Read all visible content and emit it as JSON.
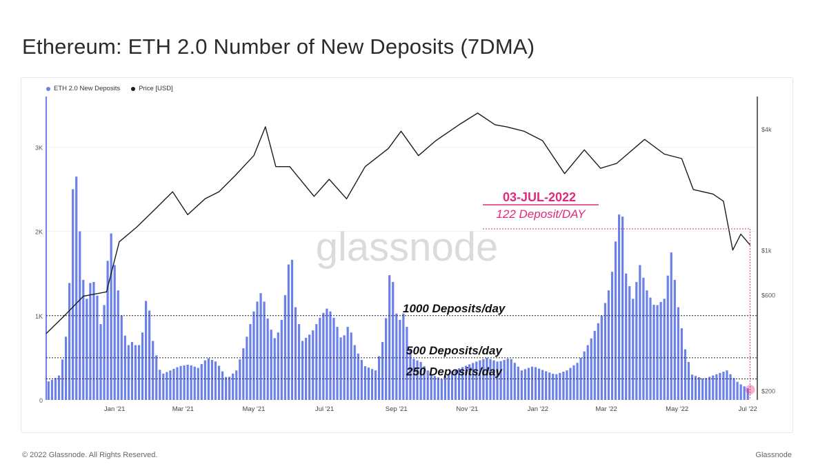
{
  "title": "Ethereum: ETH 2.0 Number of New Deposits (7DMA)",
  "footer": {
    "copyright": "© 2022 Glassnode. All Rights Reserved.",
    "brand": "Glassnode"
  },
  "watermark": "glassnode",
  "colors": {
    "deposits": "#6b80e8",
    "price": "#1a1a1a",
    "accent": "#e0287d",
    "ref": "#222222"
  },
  "chart_data": {
    "type": "bar",
    "legend": [
      {
        "name": "ETH 2.0 New Deposits",
        "color": "#6b80e8"
      },
      {
        "name": "Price [USD]",
        "color": "#1a1a1a"
      }
    ],
    "legend_position": "top-left",
    "x_ticks": [
      "Jan '21",
      "Mar '21",
      "May '21",
      "Jul '21",
      "Sep '21",
      "Nov '21",
      "Jan '22",
      "Mar '22",
      "May '22",
      "Jul '22"
    ],
    "x_tick_dates": [
      "2021-01-01",
      "2021-03-01",
      "2021-05-01",
      "2021-07-01",
      "2021-09-01",
      "2021-11-01",
      "2022-01-01",
      "2022-03-01",
      "2022-05-01",
      "2022-07-01"
    ],
    "x_range": [
      "2020-11-03",
      "2022-07-08"
    ],
    "y_left": {
      "ticks": [
        0,
        1000,
        2000,
        3000
      ],
      "tick_labels": [
        "0",
        "1K",
        "2K",
        "3K"
      ],
      "range": [
        0,
        3600
      ]
    },
    "y_right": {
      "scale": "log",
      "ticks": [
        200,
        600,
        1000,
        4000
      ],
      "tick_labels": [
        "$200",
        "$600",
        "$1k",
        "$4k"
      ],
      "range": [
        180,
        5800
      ]
    },
    "series": [
      {
        "name": "ETH 2.0 New Deposits",
        "axis": "left",
        "type": "bar",
        "color": "#6b80e8",
        "points": [
          [
            "2020-11-05",
            220
          ],
          [
            "2020-11-10",
            250
          ],
          [
            "2020-11-15",
            300
          ],
          [
            "2020-11-20",
            750
          ],
          [
            "2020-11-24",
            1600
          ],
          [
            "2020-11-27",
            2950
          ],
          [
            "2020-11-30",
            2500
          ],
          [
            "2020-12-04",
            1500
          ],
          [
            "2020-12-08",
            1200
          ],
          [
            "2020-12-12",
            1450
          ],
          [
            "2020-12-16",
            1350
          ],
          [
            "2020-12-20",
            900
          ],
          [
            "2020-12-24",
            1200
          ],
          [
            "2020-12-28",
            2100
          ],
          [
            "2021-01-01",
            1600
          ],
          [
            "2021-01-05",
            1200
          ],
          [
            "2021-01-09",
            800
          ],
          [
            "2021-01-13",
            650
          ],
          [
            "2021-01-17",
            700
          ],
          [
            "2021-01-21",
            600
          ],
          [
            "2021-01-25",
            800
          ],
          [
            "2021-01-29",
            1300
          ],
          [
            "2021-02-03",
            700
          ],
          [
            "2021-02-10",
            300
          ],
          [
            "2021-02-18",
            350
          ],
          [
            "2021-02-26",
            400
          ],
          [
            "2021-03-06",
            420
          ],
          [
            "2021-03-14",
            380
          ],
          [
            "2021-03-22",
            500
          ],
          [
            "2021-03-30",
            450
          ],
          [
            "2021-04-08",
            250
          ],
          [
            "2021-04-16",
            350
          ],
          [
            "2021-04-24",
            700
          ],
          [
            "2021-05-02",
            1100
          ],
          [
            "2021-05-08",
            1300
          ],
          [
            "2021-05-14",
            900
          ],
          [
            "2021-05-20",
            700
          ],
          [
            "2021-05-26",
            1000
          ],
          [
            "2021-06-02",
            1850
          ],
          [
            "2021-06-06",
            1100
          ],
          [
            "2021-06-12",
            700
          ],
          [
            "2021-06-20",
            800
          ],
          [
            "2021-06-28",
            1000
          ],
          [
            "2021-07-04",
            1100
          ],
          [
            "2021-07-10",
            950
          ],
          [
            "2021-07-16",
            700
          ],
          [
            "2021-07-22",
            900
          ],
          [
            "2021-07-28",
            600
          ],
          [
            "2021-08-05",
            400
          ],
          [
            "2021-08-14",
            350
          ],
          [
            "2021-08-22",
            800
          ],
          [
            "2021-08-27",
            1650
          ],
          [
            "2021-09-02",
            900
          ],
          [
            "2021-09-08",
            1050
          ],
          [
            "2021-09-14",
            500
          ],
          [
            "2021-09-22",
            450
          ],
          [
            "2021-10-01",
            300
          ],
          [
            "2021-10-10",
            250
          ],
          [
            "2021-10-20",
            350
          ],
          [
            "2021-10-30",
            400
          ],
          [
            "2021-11-08",
            450
          ],
          [
            "2021-11-18",
            500
          ],
          [
            "2021-11-28",
            450
          ],
          [
            "2021-12-08",
            500
          ],
          [
            "2021-12-18",
            350
          ],
          [
            "2021-12-28",
            400
          ],
          [
            "2022-01-06",
            350
          ],
          [
            "2022-01-16",
            300
          ],
          [
            "2022-01-26",
            350
          ],
          [
            "2022-02-05",
            450
          ],
          [
            "2022-02-15",
            700
          ],
          [
            "2022-02-25",
            1000
          ],
          [
            "2022-03-05",
            1400
          ],
          [
            "2022-03-10",
            2000
          ],
          [
            "2022-03-14",
            2400
          ],
          [
            "2022-03-18",
            1500
          ],
          [
            "2022-03-24",
            1200
          ],
          [
            "2022-03-30",
            1600
          ],
          [
            "2022-04-05",
            1300
          ],
          [
            "2022-04-12",
            1100
          ],
          [
            "2022-04-20",
            1200
          ],
          [
            "2022-04-26",
            1750
          ],
          [
            "2022-05-02",
            1100
          ],
          [
            "2022-05-08",
            600
          ],
          [
            "2022-05-14",
            300
          ],
          [
            "2022-05-24",
            250
          ],
          [
            "2022-06-03",
            300
          ],
          [
            "2022-06-13",
            350
          ],
          [
            "2022-06-23",
            200
          ],
          [
            "2022-07-03",
            122
          ]
        ]
      },
      {
        "name": "Price [USD]",
        "axis": "right",
        "type": "line",
        "color": "#1a1a1a",
        "points": [
          [
            "2020-11-03",
            385
          ],
          [
            "2020-11-20",
            480
          ],
          [
            "2020-12-05",
            590
          ],
          [
            "2020-12-25",
            620
          ],
          [
            "2021-01-05",
            1100
          ],
          [
            "2021-01-20",
            1300
          ],
          [
            "2021-02-05",
            1600
          ],
          [
            "2021-02-20",
            1950
          ],
          [
            "2021-03-05",
            1500
          ],
          [
            "2021-03-20",
            1800
          ],
          [
            "2021-04-01",
            1950
          ],
          [
            "2021-04-15",
            2350
          ],
          [
            "2021-05-01",
            2950
          ],
          [
            "2021-05-11",
            4100
          ],
          [
            "2021-05-20",
            2600
          ],
          [
            "2021-06-01",
            2600
          ],
          [
            "2021-06-22",
            1850
          ],
          [
            "2021-07-05",
            2250
          ],
          [
            "2021-07-20",
            1800
          ],
          [
            "2021-08-05",
            2600
          ],
          [
            "2021-08-25",
            3200
          ],
          [
            "2021-09-05",
            3900
          ],
          [
            "2021-09-20",
            2950
          ],
          [
            "2021-10-05",
            3500
          ],
          [
            "2021-10-25",
            4200
          ],
          [
            "2021-11-10",
            4800
          ],
          [
            "2021-11-25",
            4200
          ],
          [
            "2021-12-05",
            4100
          ],
          [
            "2021-12-20",
            3900
          ],
          [
            "2022-01-05",
            3500
          ],
          [
            "2022-01-24",
            2400
          ],
          [
            "2022-02-10",
            3150
          ],
          [
            "2022-02-24",
            2550
          ],
          [
            "2022-03-10",
            2700
          ],
          [
            "2022-04-03",
            3550
          ],
          [
            "2022-04-20",
            3000
          ],
          [
            "2022-05-05",
            2850
          ],
          [
            "2022-05-15",
            2000
          ],
          [
            "2022-06-01",
            1900
          ],
          [
            "2022-06-10",
            1750
          ],
          [
            "2022-06-18",
            1000
          ],
          [
            "2022-06-25",
            1200
          ],
          [
            "2022-07-03",
            1060
          ]
        ]
      }
    ],
    "reference_lines": [
      {
        "value": 1000,
        "label": "1000 Deposits/day"
      },
      {
        "value": 500,
        "label": "500 Deposits/day"
      },
      {
        "value": 250,
        "label": "250 Deposits/day"
      }
    ],
    "annotation": {
      "date_label": "03-JUL-2022",
      "value_label": "122 Deposit/DAY",
      "date": "2022-07-03",
      "value": 122,
      "guide_level": 2030
    }
  }
}
